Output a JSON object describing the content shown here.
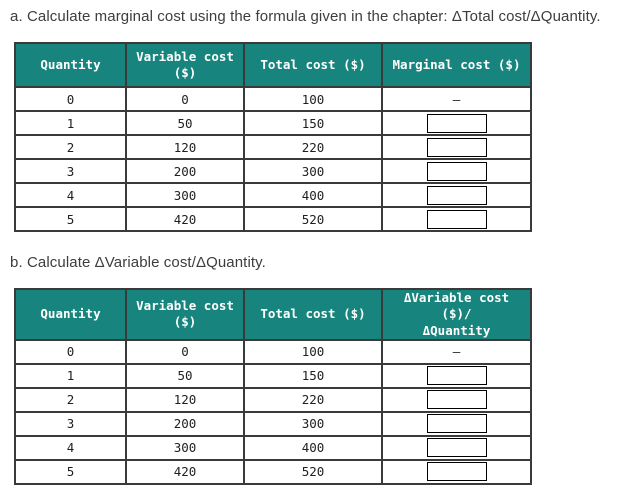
{
  "colors": {
    "header_bg": "#17857d",
    "header_text": "#ffffff",
    "table_border": "#3a3a3a",
    "body_text": "#1f1f1f",
    "title_text": "#3d3d3d",
    "input_border": "#000000"
  },
  "section_a": {
    "title": "a. Calculate marginal cost using the formula given in the chapter: ΔTotal cost/ΔQuantity.",
    "table": {
      "headers": [
        "Quantity",
        "Variable cost\n($)",
        "Total cost ($)",
        "Marginal cost ($)"
      ],
      "rows": [
        {
          "quantity": "0",
          "variable_cost": "0",
          "total_cost": "100",
          "answer": "–"
        },
        {
          "quantity": "1",
          "variable_cost": "50",
          "total_cost": "150",
          "answer_input_value": ""
        },
        {
          "quantity": "2",
          "variable_cost": "120",
          "total_cost": "220",
          "answer_input_value": ""
        },
        {
          "quantity": "3",
          "variable_cost": "200",
          "total_cost": "300",
          "answer_input_value": ""
        },
        {
          "quantity": "4",
          "variable_cost": "300",
          "total_cost": "400",
          "answer_input_value": ""
        },
        {
          "quantity": "5",
          "variable_cost": "420",
          "total_cost": "520",
          "answer_input_value": ""
        }
      ]
    }
  },
  "section_b": {
    "title": "b. Calculate ΔVariable cost/ΔQuantity.",
    "table": {
      "headers": [
        "Quantity",
        "Variable cost\n($)",
        "Total cost ($)",
        "ΔVariable cost ($)/\nΔQuantity"
      ],
      "rows": [
        {
          "quantity": "0",
          "variable_cost": "0",
          "total_cost": "100",
          "answer": "–"
        },
        {
          "quantity": "1",
          "variable_cost": "50",
          "total_cost": "150",
          "answer_input_value": ""
        },
        {
          "quantity": "2",
          "variable_cost": "120",
          "total_cost": "220",
          "answer_input_value": ""
        },
        {
          "quantity": "3",
          "variable_cost": "200",
          "total_cost": "300",
          "answer_input_value": ""
        },
        {
          "quantity": "4",
          "variable_cost": "300",
          "total_cost": "400",
          "answer_input_value": ""
        },
        {
          "quantity": "5",
          "variable_cost": "420",
          "total_cost": "520",
          "answer_input_value": ""
        }
      ]
    }
  }
}
